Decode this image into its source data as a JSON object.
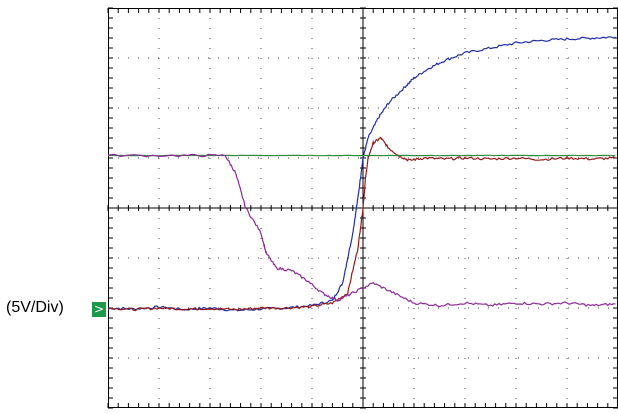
{
  "scale_label": "(5V/Div)",
  "marker_glyph": ">",
  "chart_data": {
    "type": "line",
    "title": "",
    "xlabel": "",
    "ylabel": "",
    "x_divisions": 10,
    "y_divisions": 8,
    "xlim": [
      0,
      10
    ],
    "ylim": [
      0,
      8
    ],
    "grid": true,
    "series": [
      {
        "color": "#1f2fa8",
        "points": [
          [
            0,
            2.0
          ],
          [
            0.5,
            1.98
          ],
          [
            1.0,
            2.02
          ],
          [
            1.5,
            1.97
          ],
          [
            2.0,
            2.0
          ],
          [
            2.5,
            1.95
          ],
          [
            3.0,
            1.98
          ],
          [
            3.5,
            2.0
          ],
          [
            4.0,
            2.05
          ],
          [
            4.4,
            2.15
          ],
          [
            4.6,
            2.5
          ],
          [
            4.8,
            3.5
          ],
          [
            4.9,
            4.2
          ],
          [
            5.0,
            5.0
          ],
          [
            5.1,
            5.4
          ],
          [
            5.3,
            5.8
          ],
          [
            5.5,
            6.1
          ],
          [
            5.8,
            6.4
          ],
          [
            6.0,
            6.6
          ],
          [
            6.3,
            6.8
          ],
          [
            6.6,
            6.95
          ],
          [
            7.0,
            7.1
          ],
          [
            7.5,
            7.2
          ],
          [
            8.0,
            7.3
          ],
          [
            8.5,
            7.35
          ],
          [
            9.0,
            7.38
          ],
          [
            9.5,
            7.4
          ],
          [
            9.95,
            7.42
          ]
        ]
      },
      {
        "color": "#9a1a1a",
        "points": [
          [
            0,
            2.0
          ],
          [
            0.5,
            1.97
          ],
          [
            1.0,
            2.0
          ],
          [
            1.5,
            1.98
          ],
          [
            2.0,
            1.99
          ],
          [
            2.5,
            1.97
          ],
          [
            3.0,
            2.0
          ],
          [
            3.5,
            2.0
          ],
          [
            4.0,
            2.03
          ],
          [
            4.4,
            2.1
          ],
          [
            4.7,
            2.3
          ],
          [
            4.9,
            3.2
          ],
          [
            5.0,
            4.0
          ],
          [
            5.05,
            4.6
          ],
          [
            5.1,
            5.0
          ],
          [
            5.2,
            5.3
          ],
          [
            5.35,
            5.4
          ],
          [
            5.5,
            5.2
          ],
          [
            5.7,
            5.05
          ],
          [
            5.9,
            4.95
          ],
          [
            6.2,
            5.0
          ],
          [
            6.6,
            4.98
          ],
          [
            7.0,
            5.0
          ],
          [
            7.5,
            4.98
          ],
          [
            8.0,
            5.0
          ],
          [
            8.5,
            4.97
          ],
          [
            9.0,
            5.0
          ],
          [
            9.5,
            4.98
          ],
          [
            9.95,
            5.0
          ]
        ]
      },
      {
        "color": "#2e8b3e",
        "points": [
          [
            0,
            5.05
          ],
          [
            1,
            5.05
          ],
          [
            2,
            5.05
          ],
          [
            3,
            5.05
          ],
          [
            4,
            5.05
          ],
          [
            5,
            5.05
          ],
          [
            6,
            5.05
          ],
          [
            7,
            5.05
          ],
          [
            8,
            5.05
          ],
          [
            9,
            5.05
          ],
          [
            9.95,
            5.05
          ]
        ]
      },
      {
        "color": "#8e2a9a",
        "points": [
          [
            0,
            5.05
          ],
          [
            1.5,
            5.05
          ],
          [
            2.3,
            5.05
          ],
          [
            2.5,
            4.7
          ],
          [
            2.7,
            4.0
          ],
          [
            3.0,
            3.5
          ],
          [
            3.1,
            3.1
          ],
          [
            3.3,
            2.8
          ],
          [
            3.6,
            2.75
          ],
          [
            3.9,
            2.55
          ],
          [
            4.2,
            2.3
          ],
          [
            4.5,
            2.15
          ],
          [
            4.8,
            2.3
          ],
          [
            5.2,
            2.5
          ],
          [
            5.6,
            2.3
          ],
          [
            6.0,
            2.1
          ],
          [
            6.5,
            2.05
          ],
          [
            7.0,
            2.1
          ],
          [
            7.5,
            2.05
          ],
          [
            8.0,
            2.1
          ],
          [
            8.5,
            2.08
          ],
          [
            9.0,
            2.1
          ],
          [
            9.5,
            2.05
          ],
          [
            9.95,
            2.08
          ]
        ]
      }
    ]
  }
}
